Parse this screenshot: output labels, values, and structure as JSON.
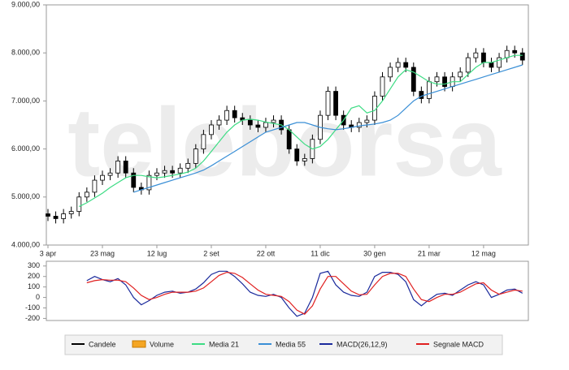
{
  "watermark": "teleborsa",
  "legend": [
    {
      "name": "Candele",
      "color": "#000000",
      "kind": "line"
    },
    {
      "name": "Volume",
      "color": "#f5a623",
      "kind": "box"
    },
    {
      "name": "Media 21",
      "color": "#3ddc84",
      "kind": "line"
    },
    {
      "name": "Media 55",
      "color": "#3a8fd6",
      "kind": "line"
    },
    {
      "name": "MACD(26,12,9)",
      "color": "#1a2a9c",
      "kind": "line"
    },
    {
      "name": "Segnale MACD",
      "color": "#e02020",
      "kind": "line"
    }
  ],
  "chart_data": [
    {
      "type": "candlestick",
      "categories": [
        "3 apr",
        null,
        null,
        null,
        null,
        null,
        null,
        "23 mag",
        null,
        null,
        null,
        null,
        null,
        null,
        "12 lug",
        null,
        null,
        null,
        null,
        null,
        null,
        "2 set",
        null,
        null,
        null,
        null,
        null,
        null,
        "22 ott",
        null,
        null,
        null,
        null,
        null,
        null,
        "11 dic",
        null,
        null,
        null,
        null,
        null,
        null,
        "30 gen",
        null,
        null,
        null,
        null,
        null,
        null,
        "21 mar",
        null,
        null,
        null,
        null,
        null,
        null,
        "12 mag",
        null,
        null,
        null,
        null,
        null
      ],
      "ylim": [
        4000,
        9000
      ],
      "yticks": [
        {
          "value": 4000,
          "label": "4.000,00"
        },
        {
          "value": 5000,
          "label": "5.000,00"
        },
        {
          "value": 6000,
          "label": "6.000,00"
        },
        {
          "value": 7000,
          "label": "7.000,00"
        },
        {
          "value": 8000,
          "label": "8.000,00"
        },
        {
          "value": 9000,
          "label": "9.000,00"
        }
      ],
      "candles": {
        "color": "#000000",
        "open": [
          4650,
          4600,
          4550,
          4650,
          4700,
          5000,
          5100,
          5350,
          5450,
          5500,
          5750,
          5500,
          5200,
          5150,
          5450,
          5500,
          5550,
          5500,
          5600,
          5700,
          6000,
          6300,
          6500,
          6600,
          6800,
          6650,
          6600,
          6500,
          6450,
          6550,
          6600,
          6400,
          6000,
          5750,
          5800,
          6200,
          6700,
          7200,
          6700,
          6500,
          6450,
          6550,
          6600,
          7100,
          7500,
          7700,
          7800,
          7700,
          7200,
          7050,
          7400,
          7500,
          7300,
          7500,
          7600,
          7900,
          8000,
          7800,
          7700,
          7900,
          8050,
          8000
        ],
        "high": [
          4750,
          4700,
          4750,
          4800,
          5100,
          5200,
          5450,
          5550,
          5600,
          5850,
          5850,
          5600,
          5300,
          5550,
          5600,
          5650,
          5650,
          5700,
          5800,
          6100,
          6400,
          6600,
          6700,
          6900,
          6900,
          6750,
          6700,
          6600,
          6650,
          6700,
          6700,
          6500,
          6100,
          5900,
          6300,
          6800,
          7300,
          7300,
          6800,
          6600,
          6650,
          6700,
          7200,
          7600,
          7800,
          7900,
          7900,
          7800,
          7300,
          7500,
          7600,
          7600,
          7600,
          7700,
          8000,
          8100,
          8100,
          7900,
          8000,
          8150,
          8150,
          8100
        ],
        "low": [
          4500,
          4450,
          4450,
          4550,
          4600,
          4900,
          5000,
          5250,
          5350,
          5400,
          5400,
          5100,
          5050,
          5050,
          5350,
          5400,
          5400,
          5400,
          5500,
          5600,
          5900,
          6200,
          6400,
          6500,
          6550,
          6500,
          6400,
          6350,
          6350,
          6450,
          6300,
          5900,
          5650,
          5650,
          5700,
          6100,
          6600,
          6600,
          6400,
          6350,
          6350,
          6450,
          6500,
          7000,
          7400,
          7600,
          7600,
          7100,
          6950,
          6950,
          7300,
          7200,
          7200,
          7400,
          7500,
          7800,
          7700,
          7600,
          7600,
          7800,
          7900,
          7750
        ],
        "close": [
          4600,
          4550,
          4650,
          4700,
          5000,
          5100,
          5350,
          5450,
          5500,
          5750,
          5500,
          5200,
          5150,
          5450,
          5500,
          5550,
          5500,
          5600,
          5700,
          6000,
          6300,
          6500,
          6600,
          6800,
          6650,
          6600,
          6500,
          6450,
          6550,
          6600,
          6400,
          6000,
          5750,
          5800,
          6200,
          6700,
          7200,
          6700,
          6500,
          6450,
          6550,
          6600,
          7100,
          7500,
          7700,
          7800,
          7700,
          7200,
          7050,
          7400,
          7500,
          7300,
          7500,
          7600,
          7900,
          8000,
          7800,
          7700,
          7900,
          8050,
          8000,
          7850
        ]
      },
      "series": [
        {
          "color": "#3ddc84",
          "values": [
            null,
            null,
            null,
            null,
            4800,
            4880,
            4980,
            5080,
            5200,
            5300,
            5400,
            5450,
            5450,
            5420,
            5400,
            5420,
            5450,
            5480,
            5520,
            5600,
            5750,
            5950,
            6150,
            6350,
            6500,
            6600,
            6620,
            6600,
            6560,
            6530,
            6500,
            6400,
            6250,
            6100,
            6000,
            6050,
            6200,
            6400,
            6600,
            6850,
            6900,
            6750,
            6800,
            7000,
            7250,
            7500,
            7650,
            7600,
            7500,
            7400,
            7350,
            7350,
            7400,
            7400,
            7550,
            7700,
            7800,
            7800,
            7850,
            7900,
            7950,
            7950
          ]
        },
        {
          "color": "#3a8fd6",
          "values": [
            null,
            null,
            null,
            null,
            null,
            null,
            null,
            null,
            null,
            null,
            null,
            5100,
            5150,
            5200,
            5250,
            5300,
            5350,
            5400,
            5450,
            5500,
            5560,
            5650,
            5750,
            5850,
            5950,
            6050,
            6150,
            6250,
            6350,
            6400,
            6450,
            6500,
            6550,
            6550,
            6500,
            6450,
            6420,
            6400,
            6420,
            6450,
            6480,
            6500,
            6520,
            6550,
            6600,
            6700,
            6850,
            7000,
            7100,
            7150,
            7200,
            7250,
            7300,
            7350,
            7400,
            7450,
            7500,
            7550,
            7600,
            7650,
            7700,
            7750
          ]
        }
      ]
    },
    {
      "type": "line",
      "ylim": [
        -220,
        345
      ],
      "yticks": [
        300,
        200,
        100,
        0,
        -100,
        -200
      ],
      "series": [
        {
          "color": "#1a2a9c",
          "values": [
            null,
            null,
            null,
            null,
            null,
            160,
            200,
            170,
            150,
            180,
            120,
            0,
            -70,
            -30,
            20,
            50,
            60,
            40,
            50,
            80,
            140,
            220,
            250,
            250,
            200,
            130,
            50,
            20,
            10,
            30,
            0,
            -100,
            -180,
            -150,
            0,
            230,
            250,
            120,
            50,
            20,
            10,
            50,
            200,
            240,
            240,
            220,
            150,
            -20,
            -80,
            -20,
            30,
            40,
            20,
            70,
            120,
            150,
            120,
            0,
            30,
            70,
            80,
            40
          ]
        },
        {
          "color": "#e02020",
          "values": [
            null,
            null,
            null,
            null,
            null,
            140,
            160,
            170,
            165,
            165,
            150,
            90,
            20,
            -20,
            0,
            30,
            50,
            50,
            50,
            60,
            90,
            150,
            210,
            240,
            230,
            190,
            130,
            70,
            30,
            20,
            10,
            -40,
            -120,
            -160,
            -80,
            80,
            200,
            200,
            130,
            60,
            25,
            30,
            120,
            200,
            230,
            230,
            200,
            80,
            -20,
            -40,
            0,
            30,
            30,
            50,
            90,
            130,
            140,
            70,
            30,
            50,
            70,
            60
          ]
        }
      ]
    }
  ]
}
